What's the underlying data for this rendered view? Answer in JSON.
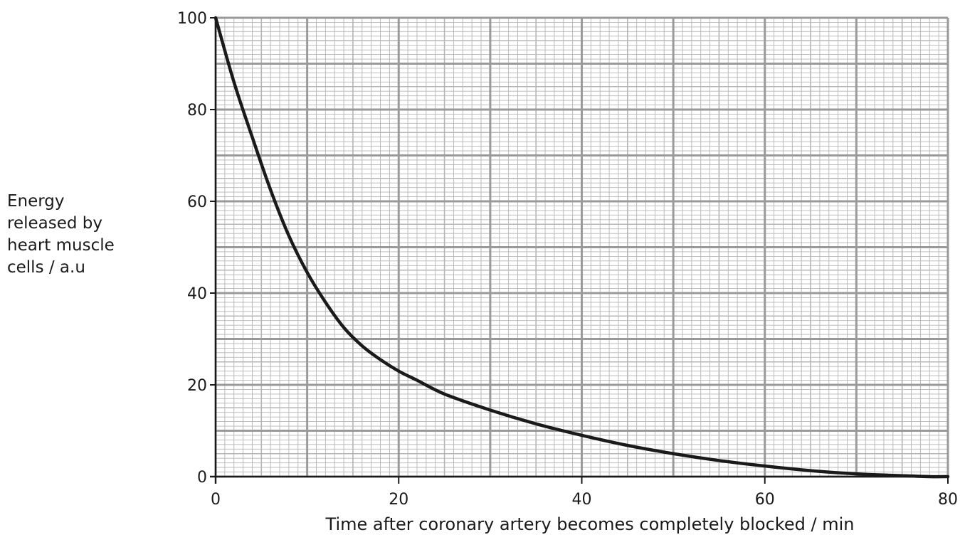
{
  "chart_data": {
    "type": "line",
    "title": "",
    "xlabel": "Time after coronary artery becomes completely blocked / min",
    "ylabel_lines": [
      "Energy",
      "released by",
      "heart muscle",
      "cells / a.u"
    ],
    "xlim": [
      0,
      80
    ],
    "ylim": [
      0,
      100
    ],
    "xticks": [
      "0",
      "20",
      "40",
      "60",
      "80"
    ],
    "yticks": [
      "0",
      "20",
      "40",
      "60",
      "80",
      "100"
    ],
    "grid": true,
    "grid_minor_step": 1,
    "grid_mid_step": 5,
    "grid_major_step": 10,
    "series": [
      {
        "x": [
          0,
          2,
          4,
          6,
          8,
          10,
          12,
          14,
          16,
          18,
          20,
          22,
          25,
          30,
          35,
          40,
          45,
          50,
          55,
          60,
          65,
          70,
          75,
          78,
          80
        ],
        "values": [
          100,
          86,
          74,
          62.5,
          52.5,
          44.5,
          38,
          32.5,
          28.5,
          25.5,
          23,
          21,
          18,
          14.5,
          11.5,
          9,
          6.8,
          5,
          3.5,
          2.3,
          1.3,
          0.6,
          0.2,
          0,
          0
        ],
        "color": "#1a1a1a"
      }
    ],
    "colors": {
      "grid_minor": "#b5b5b5",
      "grid_major": "#9a9a9a",
      "axis": "#1a1a1a",
      "curve": "#1a1a1a"
    }
  }
}
